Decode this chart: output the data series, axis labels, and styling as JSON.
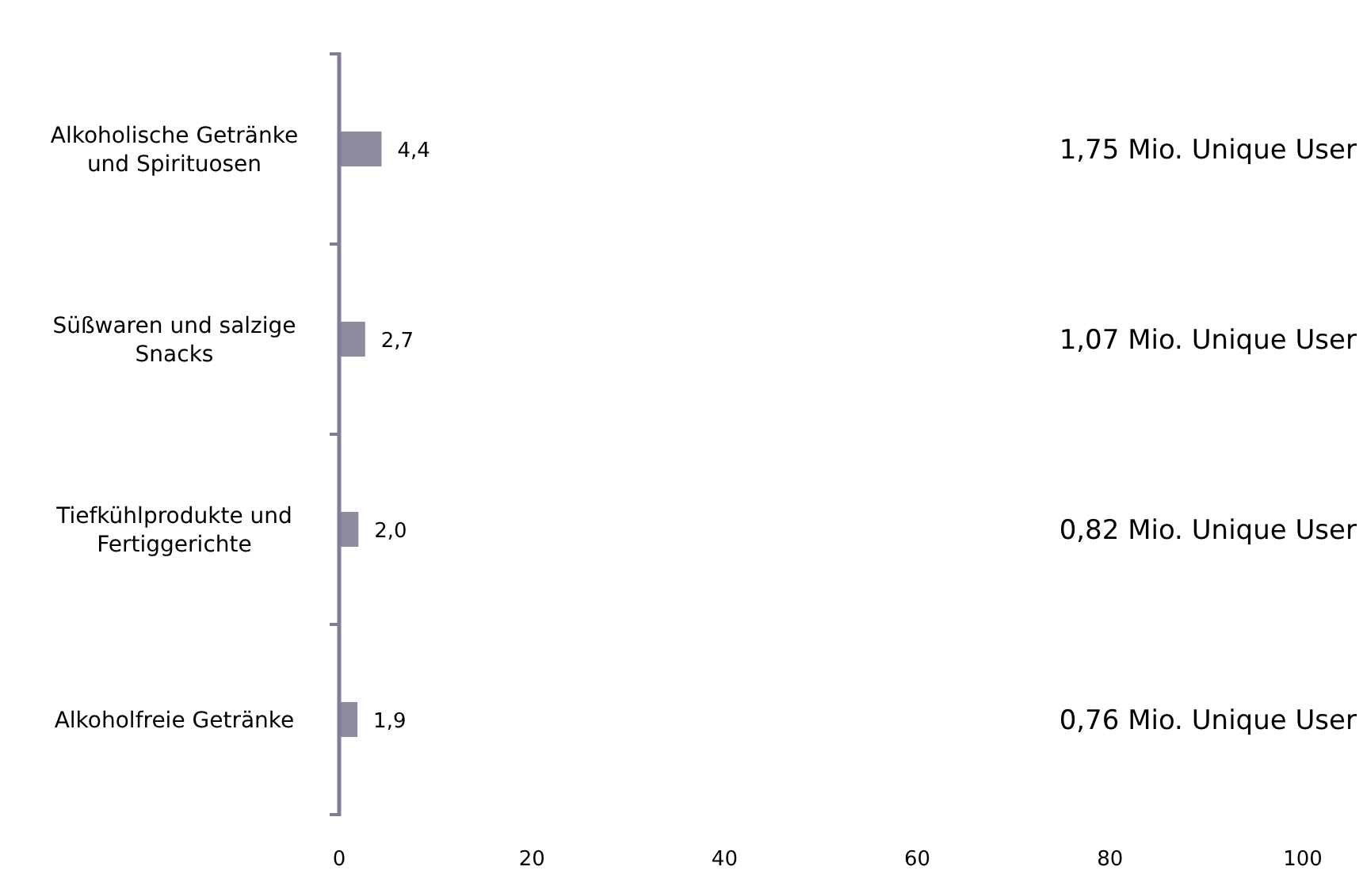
{
  "chart_data": {
    "type": "bar",
    "orientation": "horizontal",
    "categories": [
      "Alkoholische Getränke und Spirituosen",
      "Süßwaren und salzige Snacks",
      "Tiefkühlprodukte und Fertiggerichte",
      "Alkoholfreie Getränke"
    ],
    "values": [
      4.4,
      2.7,
      2.0,
      1.9
    ],
    "value_labels": [
      "4,4",
      "2,7",
      "2,0",
      "1,9"
    ],
    "color": "#8e8c9e",
    "xlim": [
      0,
      100
    ],
    "xticks": [
      0,
      20,
      40,
      60,
      80,
      100
    ],
    "grid": false,
    "annotations": [
      "1,75 Mio. Unique User",
      "1,07 Mio. Unique User",
      "0,82 Mio. Unique User",
      "0,76 Mio. Unique User"
    ]
  }
}
